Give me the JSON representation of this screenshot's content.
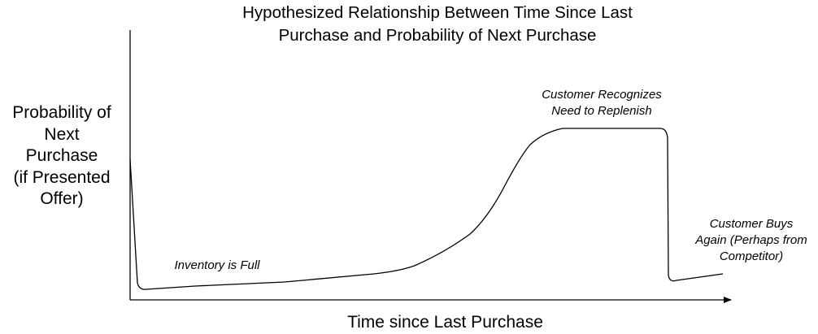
{
  "title": {
    "line1": "Hypothesized Relationship Between Time Since Last",
    "line2": "Purchase and Probability of Next Purchase"
  },
  "y_axis_label": [
    "Probability of",
    "Next",
    "Purchase",
    "(if Presented",
    "Offer)"
  ],
  "x_axis_label": "Time since Last Purchase",
  "annotations": {
    "inventory_full": "Inventory is Full",
    "recognizes_line1": "Customer Recognizes",
    "recognizes_line2": "Need to Replenish",
    "buys_again_line1": "Customer Buys",
    "buys_again_line2": "Again (Perhaps from",
    "buys_again_line3": "Competitor)"
  },
  "colors": {
    "curve": "#000000",
    "axis": "#000000",
    "background": "#ffffff"
  }
}
